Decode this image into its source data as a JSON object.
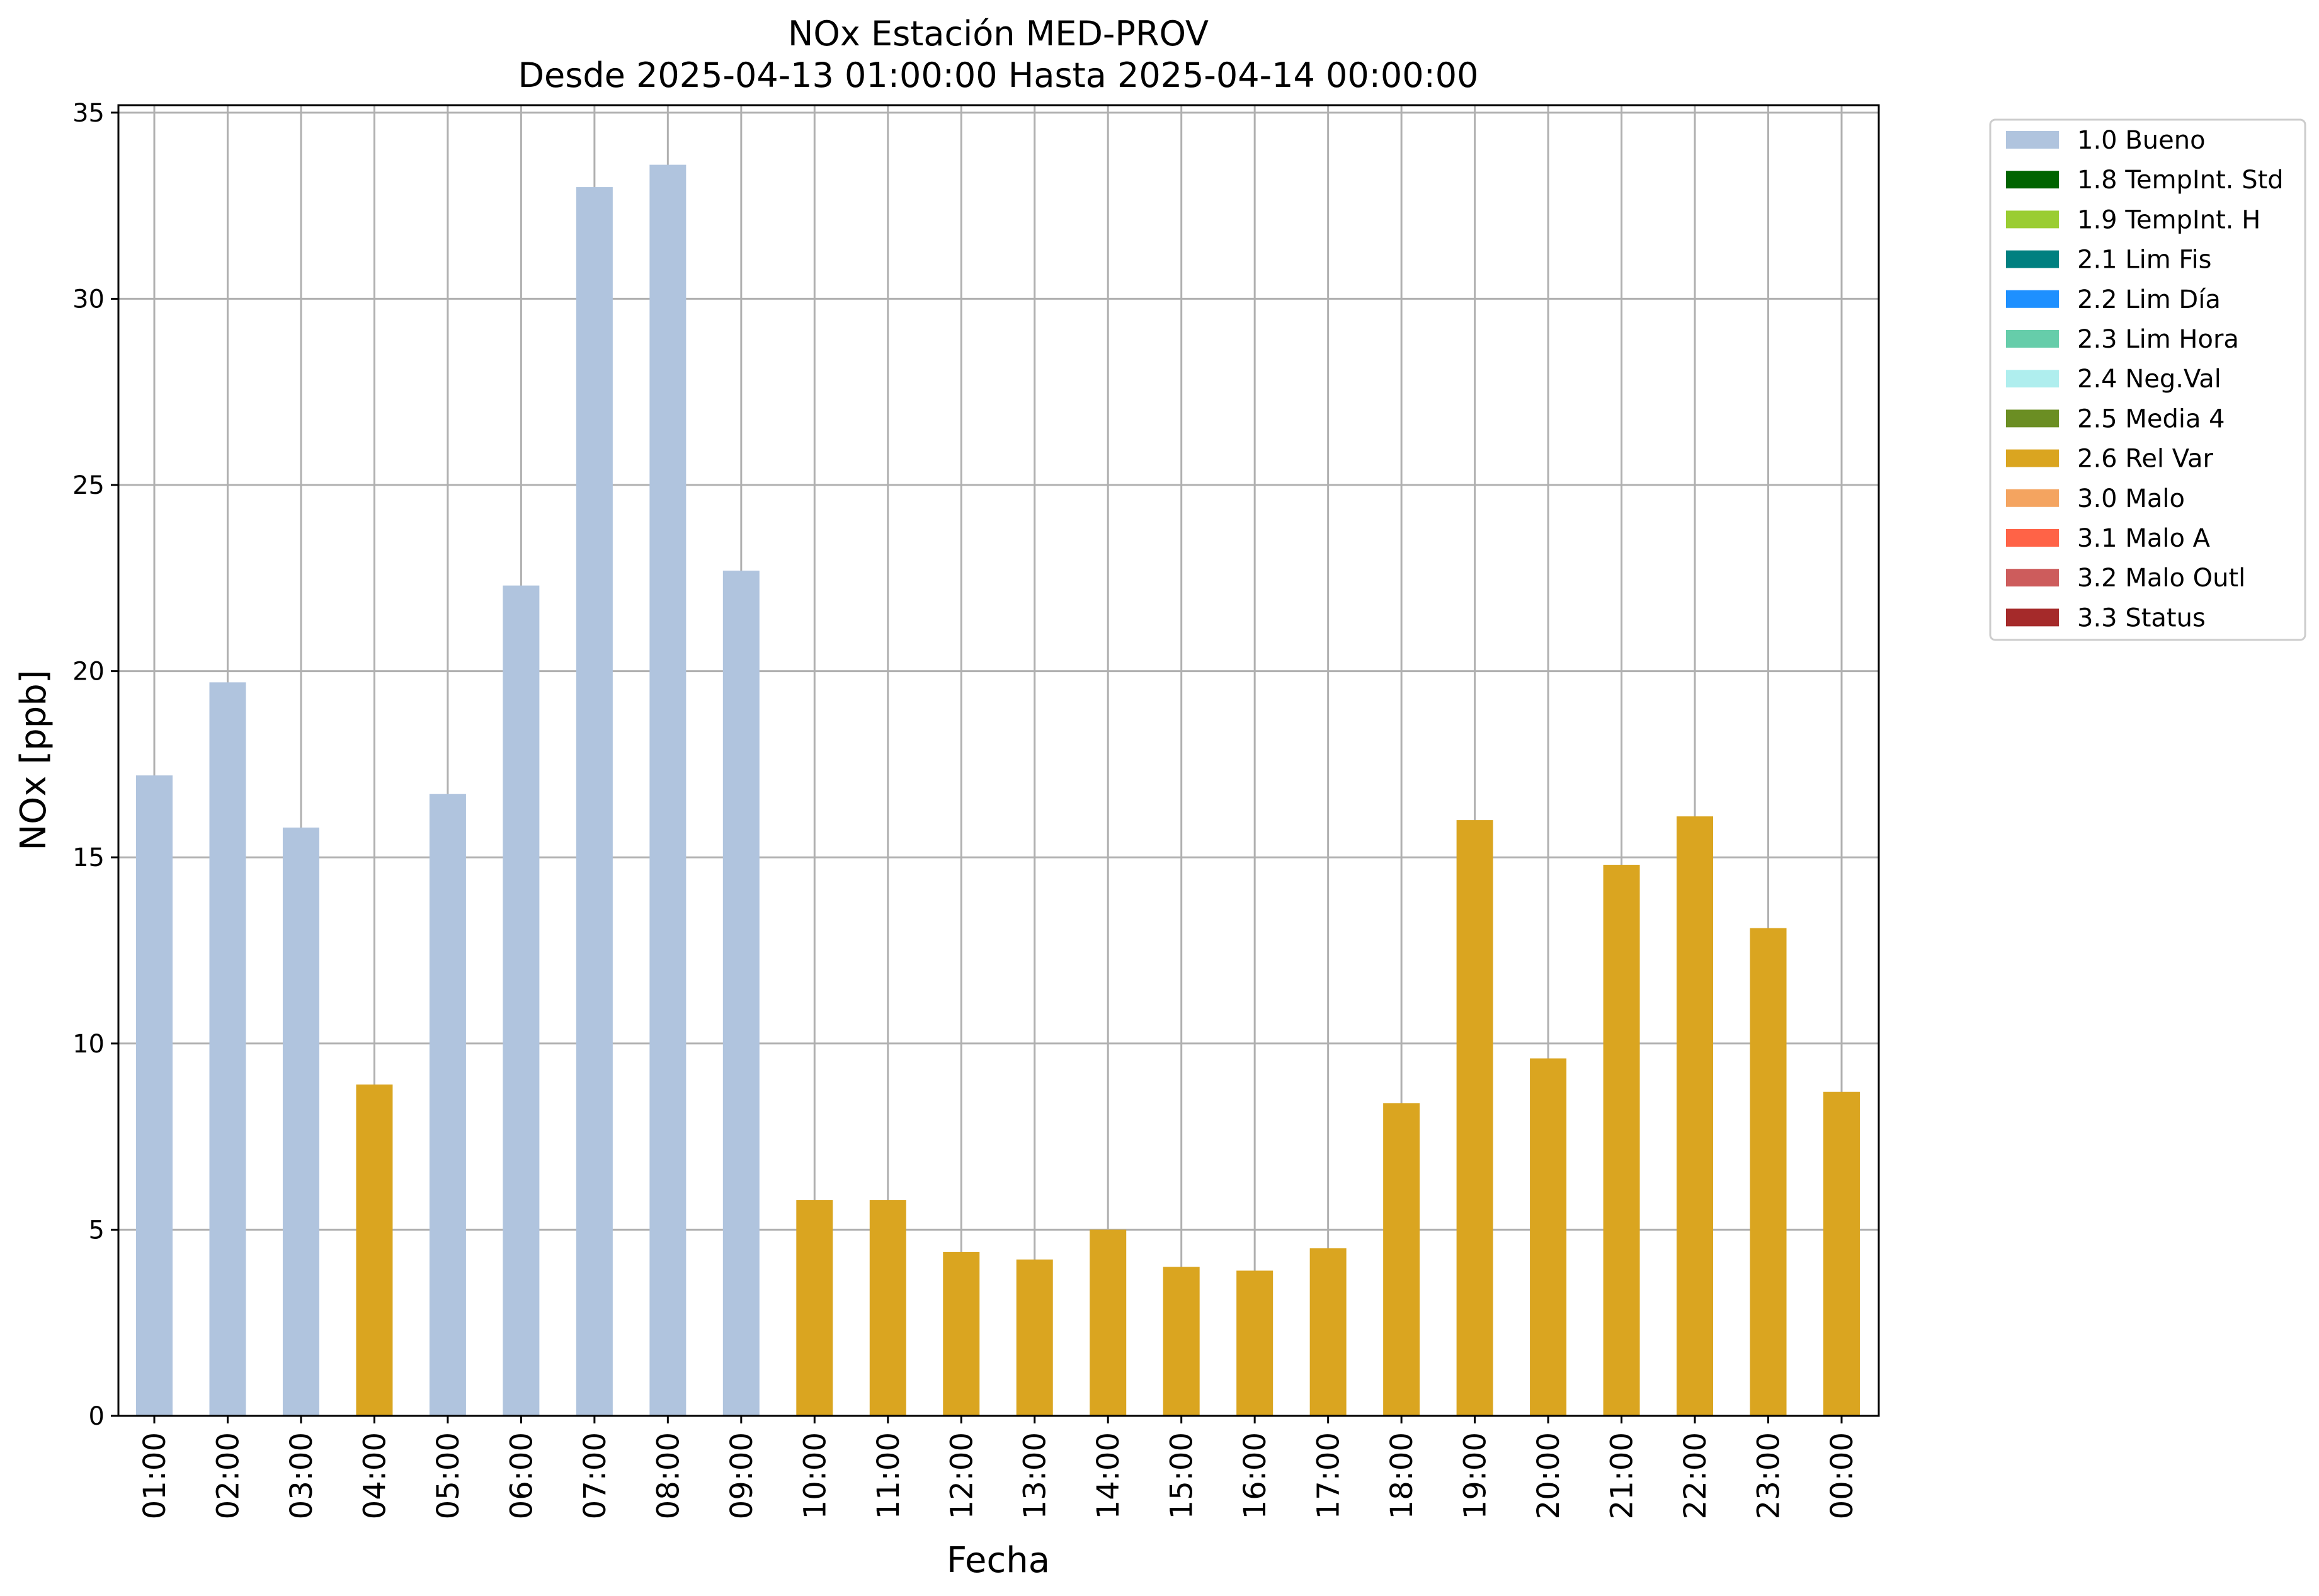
{
  "chart_data": {
    "type": "bar",
    "title": "NOx Estación MED-PROV",
    "subtitle": "Desde 2025-04-13 01:00:00 Hasta 2025-04-14 00:00:00",
    "xlabel": "Fecha",
    "ylabel": "NOx [ppb]",
    "ylim": [
      0,
      35.2
    ],
    "yticks": [
      0,
      5,
      10,
      15,
      20,
      25,
      30,
      35
    ],
    "grid": true,
    "legend_position": "outside-top-right",
    "categories": [
      "01:00",
      "02:00",
      "03:00",
      "04:00",
      "05:00",
      "06:00",
      "07:00",
      "08:00",
      "09:00",
      "10:00",
      "11:00",
      "12:00",
      "13:00",
      "14:00",
      "15:00",
      "16:00",
      "17:00",
      "18:00",
      "19:00",
      "20:00",
      "21:00",
      "22:00",
      "23:00",
      "00:00"
    ],
    "values": [
      17.2,
      19.7,
      15.8,
      8.9,
      16.7,
      22.3,
      33.0,
      33.6,
      22.7,
      5.8,
      5.8,
      4.4,
      4.2,
      5.0,
      4.0,
      3.9,
      4.5,
      8.4,
      16.0,
      9.6,
      14.8,
      16.1,
      13.1,
      8.7
    ],
    "flags": [
      "1.0 Bueno",
      "1.0 Bueno",
      "1.0 Bueno",
      "2.6 Rel Var",
      "1.0 Bueno",
      "1.0 Bueno",
      "1.0 Bueno",
      "1.0 Bueno",
      "1.0 Bueno",
      "2.6 Rel Var",
      "2.6 Rel Var",
      "2.6 Rel Var",
      "2.6 Rel Var",
      "2.6 Rel Var",
      "2.6 Rel Var",
      "2.6 Rel Var",
      "2.6 Rel Var",
      "2.6 Rel Var",
      "2.6 Rel Var",
      "2.6 Rel Var",
      "2.6 Rel Var",
      "2.6 Rel Var",
      "2.6 Rel Var",
      "2.6 Rel Var"
    ],
    "legend": [
      {
        "label": "1.0 Bueno",
        "color": "#b0c4de"
      },
      {
        "label": "1.8 TempInt. Std",
        "color": "#006400"
      },
      {
        "label": "1.9 TempInt. H",
        "color": "#9acd32"
      },
      {
        "label": "2.1 Lim Fis",
        "color": "#008080"
      },
      {
        "label": "2.2 Lim Día",
        "color": "#1e90ff"
      },
      {
        "label": "2.3 Lim Hora",
        "color": "#66cdaa"
      },
      {
        "label": "2.4 Neg.Val",
        "color": "#afeeee"
      },
      {
        "label": "2.5 Media 4",
        "color": "#6b8e23"
      },
      {
        "label": "2.6 Rel Var",
        "color": "#daa520"
      },
      {
        "label": "3.0 Malo",
        "color": "#f4a460"
      },
      {
        "label": "3.1 Malo A",
        "color": "#ff6347"
      },
      {
        "label": "3.2 Malo Outl",
        "color": "#cd5c5c"
      },
      {
        "label": "3.3 Status",
        "color": "#a52a2a"
      }
    ]
  }
}
